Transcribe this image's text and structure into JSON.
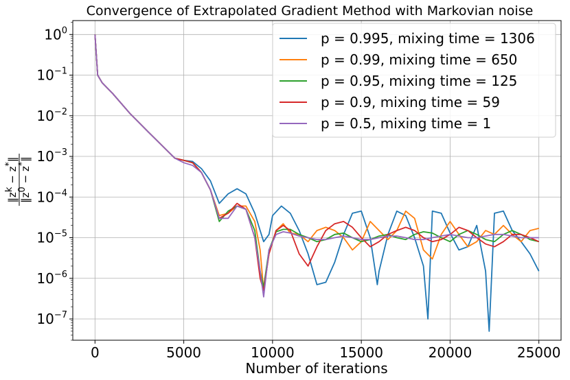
{
  "chart_data": {
    "type": "line",
    "title": "Convergence of Extrapolated Gradient Method with Markovian noise",
    "xlabel": "Number of iterations",
    "ylabel": "‖z^k − z*‖² / ‖z^0 − z*‖²",
    "ylabel_numerator": "‖z",
    "ylabel_numerator_sup": "k",
    "ylabel_numerator_rest": " − z",
    "ylabel_numerator_sup2": "*",
    "ylabel_numerator_end": "‖",
    "ylabel_denominator": "‖z",
    "ylabel_denominator_sup": "0",
    "ylabel_denominator_rest": " − z",
    "ylabel_denominator_sup2": "*",
    "ylabel_denominator_end": "‖",
    "yscale": "log",
    "xlim": [
      -1250,
      26250
    ],
    "ylim": [
      3e-08,
      2.2
    ],
    "x_ticks": [
      0,
      5000,
      10000,
      15000,
      20000,
      25000
    ],
    "x_tick_labels": [
      "0",
      "5000",
      "10000",
      "15000",
      "20000",
      "25000"
    ],
    "y_ticks": [
      1,
      0.1,
      0.01,
      0.001,
      0.0001,
      1e-05,
      1e-06,
      1e-07
    ],
    "y_tick_base": "10",
    "y_tick_exponents": [
      "0",
      "−1",
      "−2",
      "−3",
      "−4",
      "−5",
      "−6",
      "−7"
    ],
    "grid": true,
    "legend_position": "top-right",
    "series": [
      {
        "name": "p = 0.995, mixing time = 1306",
        "color": "#1f77b4",
        "x": [
          0,
          150,
          400,
          1000,
          2000,
          3000,
          3800,
          4500,
          5000,
          5500,
          6000,
          6500,
          7000,
          7500,
          8000,
          8500,
          9000,
          9300,
          9500,
          9800,
          10000,
          10500,
          11000,
          11500,
          12000,
          12500,
          13000,
          13500,
          14000,
          14500,
          15000,
          15500,
          15900,
          16000,
          16500,
          17000,
          17500,
          18000,
          18500,
          18750,
          19000,
          19500,
          20000,
          20500,
          21000,
          21500,
          22000,
          22200,
          22500,
          23000,
          23500,
          24000,
          24500,
          25000
        ],
        "y": [
          1.0,
          0.1,
          0.065,
          0.035,
          0.011,
          0.004,
          0.0018,
          0.0009,
          0.0008,
          0.00075,
          0.0005,
          0.00025,
          7e-05,
          0.00012,
          0.00016,
          0.00012,
          4e-05,
          1.5e-05,
          8e-06,
          1.2e-05,
          3.5e-05,
          6e-05,
          4e-05,
          1.5e-05,
          4e-06,
          7e-07,
          8e-07,
          2.5e-06,
          1.2e-05,
          4e-05,
          4.5e-05,
          1e-05,
          7e-07,
          1.5e-06,
          1.2e-05,
          4.5e-05,
          3.5e-05,
          1e-05,
          2e-06,
          1e-07,
          4.5e-05,
          4e-05,
          1.3e-05,
          5e-06,
          6e-06,
          2e-05,
          1.5e-06,
          5e-08,
          4e-05,
          4.5e-05,
          1.5e-05,
          8e-06,
          4e-06,
          1.5e-06
        ]
      },
      {
        "name": "p = 0.99, mixing time = 650",
        "color": "#ff7f0e",
        "x": [
          0,
          150,
          400,
          1000,
          2000,
          3000,
          3800,
          4500,
          5000,
          5500,
          6000,
          6500,
          7000,
          7500,
          8000,
          8500,
          9000,
          9300,
          9500,
          9800,
          10200,
          10600,
          11000,
          11500,
          12000,
          12500,
          13000,
          13500,
          14000,
          14500,
          15000,
          15500,
          16000,
          16500,
          17000,
          17500,
          18000,
          18500,
          19000,
          19500,
          20000,
          20500,
          21000,
          21500,
          22000,
          22500,
          23000,
          23500,
          24000,
          24500,
          25000
        ],
        "y": [
          1.0,
          0.1,
          0.065,
          0.035,
          0.011,
          0.004,
          0.0018,
          0.0009,
          0.0008,
          0.0007,
          0.0004,
          0.00015,
          3.5e-05,
          4e-05,
          6e-05,
          6e-05,
          2.5e-05,
          5e-06,
          5e-07,
          4e-06,
          1.5e-05,
          2.2e-05,
          1.3e-05,
          1.2e-05,
          8e-06,
          1.5e-05,
          1.8e-05,
          1.5e-05,
          1e-05,
          5e-06,
          8e-06,
          2.5e-05,
          1.5e-05,
          9e-06,
          1.5e-05,
          4.5e-05,
          3e-05,
          5e-06,
          3e-06,
          1.2e-05,
          2.5e-05,
          1.2e-05,
          6e-06,
          8e-06,
          1.5e-05,
          1.2e-05,
          2e-05,
          1.2e-05,
          8e-06,
          1.5e-05,
          1.7e-05
        ]
      },
      {
        "name": "p = 0.95, mixing time = 125",
        "color": "#2ca02c",
        "x": [
          0,
          150,
          400,
          1000,
          2000,
          3000,
          3800,
          4500,
          5000,
          5500,
          6000,
          6500,
          7000,
          7500,
          8000,
          8500,
          9000,
          9300,
          9500,
          9800,
          10200,
          10600,
          11000,
          11500,
          12000,
          12500,
          13000,
          13500,
          14000,
          14500,
          15000,
          15500,
          16000,
          16500,
          17000,
          17500,
          18000,
          18500,
          19000,
          19500,
          20000,
          20500,
          21000,
          21500,
          22000,
          22500,
          23000,
          23500,
          24000,
          24500,
          25000
        ],
        "y": [
          1.0,
          0.1,
          0.065,
          0.035,
          0.011,
          0.004,
          0.0018,
          0.0009,
          0.0008,
          0.0007,
          0.0004,
          0.00015,
          2.5e-05,
          4.5e-05,
          6e-05,
          5e-05,
          1.5e-05,
          1.5e-06,
          6e-07,
          5e-06,
          1.4e-05,
          1.6e-05,
          1.6e-05,
          1.2e-05,
          1e-05,
          8e-06,
          9e-06,
          1.2e-05,
          1.3e-05,
          1e-05,
          8e-06,
          9e-06,
          1.1e-05,
          1.2e-05,
          1e-05,
          9e-06,
          1.2e-05,
          1.4e-05,
          1.3e-05,
          1e-05,
          8e-06,
          1.2e-05,
          1.5e-05,
          1.2e-05,
          9e-06,
          8e-06,
          1.2e-05,
          1.5e-05,
          1.2e-05,
          9e-06,
          8e-06
        ]
      },
      {
        "name": "p = 0.9, mixing time = 59",
        "color": "#d62728",
        "x": [
          0,
          150,
          400,
          1000,
          2000,
          3000,
          3800,
          4500,
          5000,
          5500,
          6000,
          6500,
          7000,
          7500,
          8000,
          8500,
          9000,
          9300,
          9500,
          9800,
          10200,
          10600,
          11000,
          11500,
          12000,
          12500,
          13000,
          13500,
          14000,
          14500,
          15000,
          15500,
          16000,
          16500,
          17000,
          17500,
          18000,
          18500,
          19000,
          19500,
          20000,
          20500,
          21000,
          21500,
          22000,
          22500,
          23000,
          23500,
          24000,
          24500,
          25000
        ],
        "y": [
          1.0,
          0.1,
          0.065,
          0.035,
          0.011,
          0.004,
          0.0018,
          0.0009,
          0.0008,
          0.0007,
          0.0004,
          0.00015,
          3e-05,
          4e-05,
          7e-05,
          5e-05,
          1e-05,
          1e-06,
          5e-07,
          4e-06,
          1.5e-05,
          2e-05,
          1.5e-05,
          4e-06,
          2e-06,
          6e-06,
          1.5e-05,
          2.2e-05,
          2.5e-05,
          1.8e-05,
          1e-05,
          6e-06,
          8e-06,
          1.2e-05,
          1.5e-05,
          1.8e-05,
          1.5e-05,
          1e-05,
          8e-06,
          9e-06,
          1.2e-05,
          1.8e-05,
          1.5e-05,
          1e-05,
          7e-06,
          6e-06,
          8e-06,
          1.2e-05,
          1.2e-05,
          1e-05,
          8e-06
        ]
      },
      {
        "name": "p = 0.5, mixing time = 1",
        "color": "#9467bd",
        "x": [
          0,
          150,
          400,
          1000,
          2000,
          3000,
          3800,
          4500,
          5000,
          5500,
          6000,
          6500,
          7000,
          7500,
          8000,
          8500,
          9000,
          9300,
          9500,
          9800,
          10200,
          10600,
          11000,
          11500,
          12000,
          12500,
          13000,
          13500,
          14000,
          14500,
          15000,
          15500,
          16000,
          16500,
          17000,
          17500,
          18000,
          18500,
          19000,
          19500,
          20000,
          20500,
          21000,
          21500,
          22000,
          22500,
          23000,
          23500,
          24000,
          24500,
          25000
        ],
        "y": [
          1.0,
          0.1,
          0.065,
          0.035,
          0.011,
          0.004,
          0.0018,
          0.0009,
          0.0007,
          0.0006,
          0.0004,
          0.00015,
          3e-05,
          3e-05,
          6e-05,
          5e-05,
          1e-05,
          1.5e-06,
          3.5e-07,
          5e-06,
          1.2e-05,
          1.4e-05,
          1.3e-05,
          1.1e-05,
          1e-05,
          9e-06,
          9e-06,
          1e-05,
          1.1e-05,
          1e-05,
          9e-06,
          9e-06,
          1e-05,
          1.1e-05,
          1.1e-05,
          1e-05,
          9e-06,
          9e-06,
          1e-05,
          1.1e-05,
          1.2e-05,
          1.1e-05,
          1e-05,
          1e-05,
          1.1e-05,
          1.2e-05,
          1.2e-05,
          1.1e-05,
          1e-05,
          1e-05,
          1e-05
        ]
      }
    ]
  }
}
